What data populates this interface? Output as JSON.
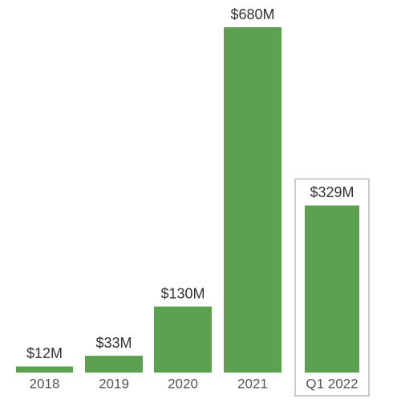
{
  "chart_data": {
    "type": "bar",
    "categories": [
      "2018",
      "2019",
      "2020",
      "2021",
      "Q1 2022"
    ],
    "values": [
      12,
      33,
      130,
      680,
      329
    ],
    "value_labels": [
      "$12M",
      "$33M",
      "$130M",
      "$680M",
      "$329M"
    ],
    "color": "#5ba150"
  }
}
